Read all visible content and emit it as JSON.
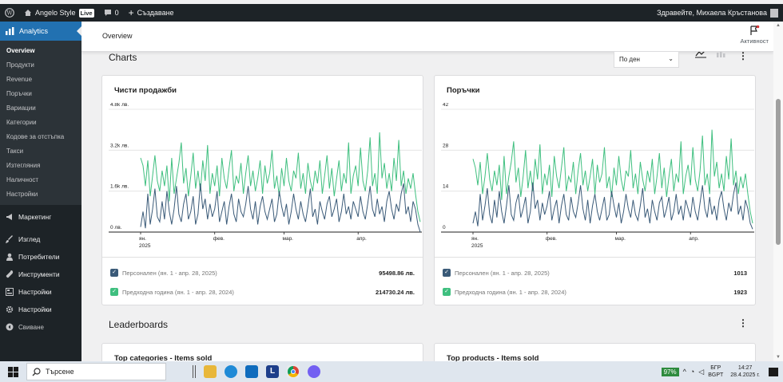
{
  "adminbar": {
    "site_name": "Angelo Style",
    "live_badge": "Live",
    "comments_count": "0",
    "new_label": "Създаване",
    "greeting": "Здравейте, Михаела Кръстанова"
  },
  "sidebar": {
    "active_label": "Analytics",
    "subitems": [
      "Overview",
      "Продукти",
      "Revenue",
      "Поръчки",
      "Вариации",
      "Категории",
      "Кодове за отстъпка",
      "Такси",
      "Изтегляния",
      "Наличност",
      "Настройки"
    ],
    "menu": [
      "Маркетинг",
      "Изглед",
      "Потребители",
      "Инструменти",
      "Настройки",
      "Настройки"
    ],
    "collapse_label": "Свиване"
  },
  "header": {
    "title": "Overview",
    "activity_label": "Активност"
  },
  "charts_section": {
    "title": "Charts",
    "interval_select": "По ден"
  },
  "leaderboards": {
    "title": "Leaderboards",
    "left_title": "Top categories - Items sold",
    "right_title": "Top products - Items sold"
  },
  "colors": {
    "current": "#3a5a78",
    "previous": "#3fbf7f",
    "accent": "#2271b1"
  },
  "chart_data": [
    {
      "type": "line",
      "title": "Чисти продажби",
      "y_ticks": [
        "4.8k лв.",
        "3.2k лв.",
        "1.6k лв.",
        "0 лв."
      ],
      "x_ticks": [
        "ян.",
        "фев.",
        "мар.",
        "апр."
      ],
      "x_year": "2025",
      "ylim": [
        0,
        4800
      ],
      "series": [
        {
          "name": "Персонален (ян. 1 - апр. 28, 2025)",
          "total": "95498.86 лв.",
          "values": [
            200,
            800,
            150,
            1500,
            300,
            900,
            1700,
            600,
            400,
            1200,
            500,
            1600,
            800,
            300,
            900,
            1800,
            700,
            400,
            1100,
            1500,
            500,
            800,
            1400,
            300,
            700,
            1900,
            900,
            1300,
            500,
            1100,
            600,
            900,
            1600,
            400,
            800,
            1200,
            300,
            1000,
            1500,
            700,
            400,
            1300,
            800,
            600,
            1100,
            1800,
            900,
            500,
            1200,
            300,
            1000,
            1400,
            800,
            500,
            900,
            1300,
            400,
            700,
            1600,
            1000,
            600,
            1100,
            300,
            800,
            1500,
            900,
            500,
            1200,
            700,
            400,
            1000,
            1700,
            600,
            900,
            300,
            1200,
            800,
            500,
            1100,
            1400,
            600,
            900,
            1300,
            400,
            800,
            1500,
            700,
            1000,
            500,
            1200,
            900,
            600,
            1400,
            800,
            500,
            1100,
            1800,
            900,
            600,
            1300,
            700,
            1000,
            400,
            1200,
            1600,
            900,
            500,
            1100,
            800,
            1500,
            1900,
            700,
            1000,
            400,
            1200,
            900,
            300,
            0
          ]
        },
        {
          "name": "Предходна година (ян. 1 - апр. 28, 2024)",
          "total": "214730.24 лв.",
          "values": [
            2900,
            2600,
            1800,
            2800,
            1400,
            2200,
            3000,
            2000,
            1600,
            2400,
            1800,
            2600,
            1200,
            2900,
            1500,
            2100,
            2700,
            3500,
            1900,
            2500,
            1400,
            2200,
            3100,
            1700,
            2400,
            1600,
            2800,
            2000,
            3400,
            1500,
            2300,
            1800,
            2600,
            1400,
            2900,
            2100,
            1700,
            2500,
            3200,
            1600,
            2200,
            1900,
            2700,
            1500,
            2300,
            3000,
            1800,
            2400,
            1600,
            2100,
            2800,
            1500,
            2600,
            1900,
            2300,
            3200,
            1700,
            2200,
            1400,
            2500,
            1800,
            2900,
            2000,
            1600,
            2400,
            2100,
            3100,
            1700,
            2300,
            1500,
            2700,
            2000,
            1600,
            2400,
            1900,
            2800,
            1500,
            2200,
            3000,
            1700,
            2500,
            1400,
            2100,
            2800,
            1600,
            2300,
            1900,
            3500,
            1500,
            2200,
            2600,
            1800,
            3300,
            2000,
            1600,
            2400,
            3700,
            1800,
            2300,
            1500,
            3900,
            2100,
            2700,
            1700,
            2300,
            1600,
            2900,
            2000,
            3600,
            1800,
            2400,
            1500,
            2100,
            1700,
            2300,
            1500,
            800,
            400
          ]
        }
      ]
    },
    {
      "type": "line",
      "title": "Поръчки",
      "y_ticks": [
        "42",
        "28",
        "14",
        "0"
      ],
      "x_ticks": [
        "ян.",
        "фев.",
        "мар.",
        "апр."
      ],
      "x_year": "2025",
      "ylim": [
        0,
        42
      ],
      "series": [
        {
          "name": "Персонален (ян. 1 - апр. 28, 2025)",
          "total": "1013",
          "values": [
            3,
            7,
            2,
            13,
            4,
            9,
            15,
            6,
            3,
            11,
            5,
            14,
            7,
            3,
            9,
            16,
            6,
            4,
            10,
            13,
            5,
            8,
            12,
            3,
            7,
            17,
            8,
            11,
            4,
            10,
            6,
            9,
            14,
            4,
            8,
            11,
            3,
            9,
            13,
            6,
            4,
            12,
            7,
            5,
            10,
            16,
            8,
            4,
            11,
            3,
            9,
            13,
            7,
            4,
            8,
            12,
            4,
            6,
            14,
            9,
            5,
            10,
            3,
            7,
            13,
            8,
            5,
            11,
            6,
            4,
            9,
            15,
            5,
            8,
            3,
            11,
            7,
            4,
            10,
            12,
            5,
            8,
            12,
            4,
            7,
            13,
            6,
            9,
            4,
            11,
            8,
            5,
            12,
            7,
            4,
            10,
            16,
            8,
            5,
            12,
            6,
            9,
            4,
            11,
            14,
            8,
            4,
            10,
            7,
            13,
            17,
            6,
            9,
            4,
            11,
            8,
            3,
            1
          ]
        },
        {
          "name": "Предходна година (ян. 1 - апр. 28, 2024)",
          "total": "1923",
          "values": [
            25,
            22,
            16,
            24,
            13,
            19,
            27,
            18,
            14,
            21,
            16,
            23,
            11,
            26,
            13,
            19,
            24,
            31,
            17,
            22,
            12,
            19,
            28,
            15,
            21,
            14,
            25,
            18,
            30,
            13,
            20,
            16,
            23,
            12,
            26,
            19,
            15,
            22,
            29,
            14,
            19,
            17,
            24,
            13,
            21,
            27,
            16,
            21,
            14,
            19,
            25,
            13,
            23,
            17,
            20,
            29,
            15,
            19,
            12,
            22,
            16,
            26,
            18,
            14,
            21,
            19,
            28,
            15,
            20,
            13,
            24,
            18,
            14,
            21,
            17,
            25,
            13,
            19,
            27,
            15,
            22,
            12,
            19,
            25,
            14,
            20,
            17,
            31,
            13,
            19,
            23,
            16,
            29,
            18,
            14,
            21,
            33,
            16,
            20,
            13,
            35,
            19,
            24,
            15,
            20,
            14,
            26,
            18,
            32,
            16,
            21,
            13,
            19,
            15,
            20,
            13,
            7,
            3
          ]
        }
      ]
    }
  ],
  "taskbar": {
    "search_placeholder": "Търсене",
    "battery": "97%",
    "lang_top": "БГР",
    "lang_bottom": "BGPT",
    "time": "14:27",
    "date": "28.4.2025 г."
  }
}
